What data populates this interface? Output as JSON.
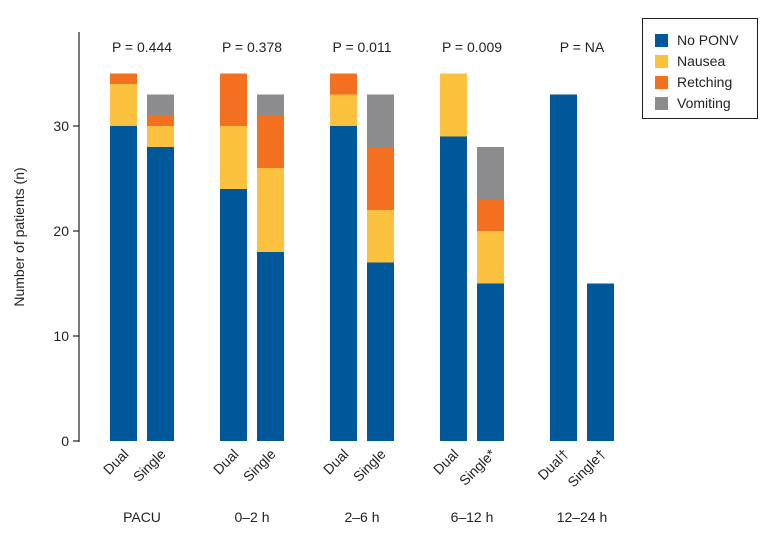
{
  "chart_data": {
    "type": "bar",
    "stacked": true,
    "title": "",
    "xlabel": "",
    "ylabel": "Number of patients (n)",
    "ylim": [
      0,
      39
    ],
    "yticks": [
      0,
      10,
      20,
      30
    ],
    "groups": [
      {
        "label": "PACU",
        "pvalue": "P = 0.444",
        "categories": [
          "Dual",
          "Single"
        ]
      },
      {
        "label": "0–2 h",
        "pvalue": "P = 0.378",
        "categories": [
          "Dual",
          "Single"
        ]
      },
      {
        "label": "2–6 h",
        "pvalue": "P = 0.011",
        "categories": [
          "Dual",
          "Single"
        ]
      },
      {
        "label": "6–12 h",
        "pvalue": "P = 0.009",
        "categories": [
          "Dual",
          "Single*"
        ]
      },
      {
        "label": "12–24 h",
        "pvalue": "P = NA",
        "categories": [
          "Dual†",
          "Single†"
        ]
      }
    ],
    "series": [
      {
        "name": "No PONV",
        "color": "#00579a",
        "values": [
          30,
          28,
          24,
          18,
          30,
          17,
          29,
          15,
          33,
          15
        ]
      },
      {
        "name": "Nausea",
        "color": "#fdc140",
        "values": [
          4,
          2,
          6,
          8,
          3,
          5,
          6,
          5,
          0,
          0
        ]
      },
      {
        "name": "Retching",
        "color": "#f37021",
        "values": [
          1,
          1,
          5,
          5,
          2,
          6,
          0,
          3,
          0,
          0
        ]
      },
      {
        "name": "Vomiting",
        "color": "#8c8c8e",
        "values": [
          0,
          2,
          0,
          2,
          0,
          5,
          0,
          5,
          0,
          0
        ]
      }
    ],
    "legend_position": "top-right",
    "grid": false
  }
}
